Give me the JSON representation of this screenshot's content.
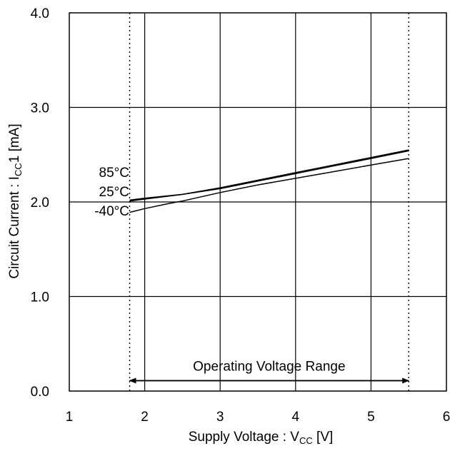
{
  "chart_data": {
    "type": "line",
    "xlabel_main": "Supply Voltage : V",
    "xlabel_sub": "CC",
    "xlabel_unit": " [V]",
    "ylabel_main": "Circuit Current : I",
    "ylabel_sub": "CC",
    "ylabel_unit": "1 [mA]",
    "xlim": [
      1,
      6
    ],
    "ylim": [
      0.0,
      4.0
    ],
    "x_ticks": [
      1,
      2,
      3,
      4,
      5,
      6
    ],
    "x_tick_labels": [
      "1",
      "2",
      "3",
      "4",
      "5",
      "6"
    ],
    "y_ticks": [
      0.0,
      1.0,
      2.0,
      3.0,
      4.0
    ],
    "y_tick_labels": [
      "0.0",
      "1.0",
      "2.0",
      "3.0",
      "4.0"
    ],
    "grid": true,
    "series": [
      {
        "name": "85°C",
        "x": [
          1.8,
          2.0,
          2.5,
          3.0,
          3.5,
          4.0,
          4.5,
          5.0,
          5.5
        ],
        "y": [
          2.02,
          2.04,
          2.08,
          2.15,
          2.23,
          2.31,
          2.39,
          2.47,
          2.55
        ]
      },
      {
        "name": "25°C",
        "x": [
          1.8,
          2.0,
          2.5,
          3.0,
          3.5,
          4.0,
          4.5,
          5.0,
          5.5
        ],
        "y": [
          2.01,
          2.03,
          2.08,
          2.14,
          2.22,
          2.3,
          2.38,
          2.46,
          2.54
        ]
      },
      {
        "name": "-40°C",
        "x": [
          1.8,
          2.0,
          2.3,
          2.5,
          3.0,
          3.5,
          4.0,
          4.5,
          5.0,
          5.5
        ],
        "y": [
          1.89,
          1.93,
          1.98,
          2.01,
          2.1,
          2.18,
          2.25,
          2.32,
          2.39,
          2.46
        ]
      }
    ],
    "reference_lines_x": [
      1.8,
      5.5
    ],
    "range_arrow": {
      "from": 1.8,
      "to": 5.5,
      "y": 0.11,
      "label": "Operating Voltage Range"
    },
    "series_labels": [
      "85°C",
      "25°C",
      "-40°C"
    ]
  }
}
